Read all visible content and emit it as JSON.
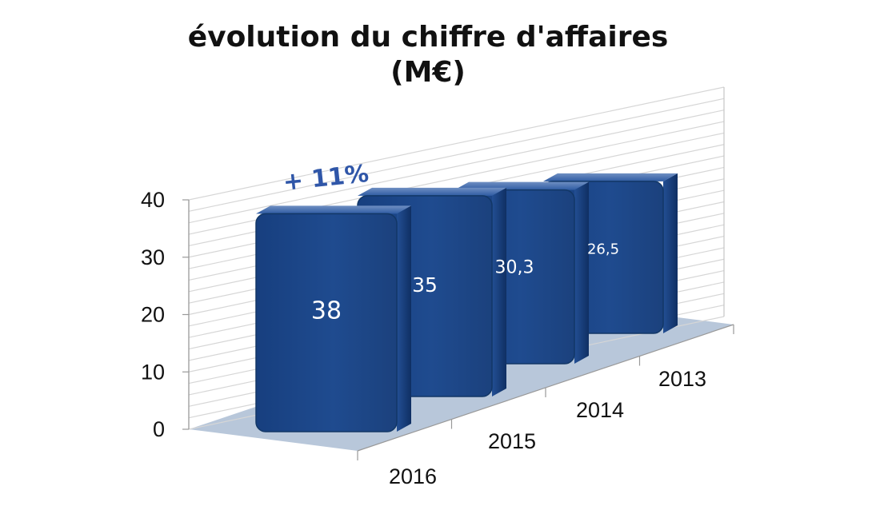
{
  "chart_data": {
    "type": "bar",
    "title": "évolution du chiffre d'affaires",
    "subtitle": "(M€)",
    "categories": [
      "2016",
      "2015",
      "2014",
      "2013"
    ],
    "values": [
      38,
      35,
      30.3,
      26.5
    ],
    "value_labels": [
      "38",
      "35",
      "30,3",
      "26,5"
    ],
    "yticks": [
      "0",
      "10",
      "20",
      "30",
      "40"
    ],
    "ylim": [
      0,
      40
    ],
    "annotation": "+ 11%",
    "grid": true,
    "legend": "none",
    "style": "3d",
    "colors": {
      "bar": "#1f4b8f",
      "bar_top": "#2f5ca3",
      "bar_side": "#0f2f63",
      "floor": "#b8c7da",
      "grid": "#d6d6d6",
      "annotation": "#2f56a8"
    }
  }
}
